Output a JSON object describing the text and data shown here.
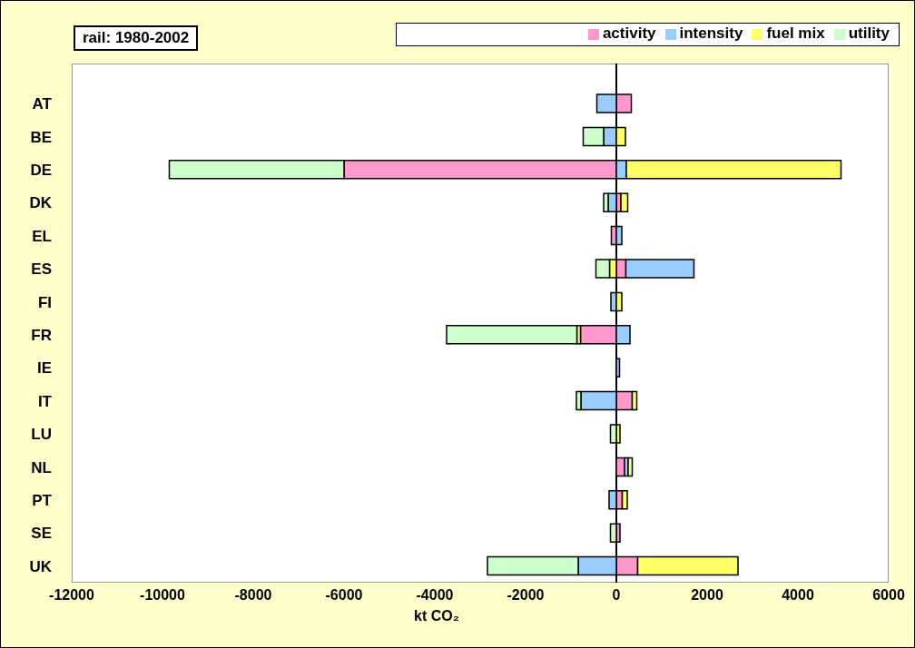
{
  "chart_data": {
    "type": "bar",
    "orientation": "horizontal",
    "stacked": true,
    "annotations": [
      "rail: 1980-2002"
    ],
    "xlabel": "kt CO₂",
    "categories": [
      "AT",
      "BE",
      "DE",
      "DK",
      "EL",
      "ES",
      "FI",
      "FR",
      "IE",
      "IT",
      "LU",
      "NL",
      "PT",
      "SE",
      "UK"
    ],
    "series": [
      {
        "name": "activity",
        "color": "#ff99cc",
        "values": [
          330,
          null,
          -6000,
          100,
          -110,
          210,
          null,
          -790,
          null,
          350,
          null,
          180,
          130,
          80,
          470
        ]
      },
      {
        "name": "intensity",
        "color": "#99ccff",
        "values": [
          -430,
          -280,
          220,
          -180,
          120,
          1500,
          -120,
          300,
          70,
          -780,
          null,
          80,
          -160,
          null,
          -840
        ]
      },
      {
        "name": "fuel mix",
        "color": "#ffff66",
        "values": [
          null,
          200,
          4730,
          150,
          null,
          -150,
          120,
          -80,
          null,
          100,
          80,
          90,
          110,
          null,
          2210
        ]
      },
      {
        "name": "utility",
        "color": "#ccffcc",
        "values": [
          null,
          -450,
          -3850,
          -100,
          null,
          -300,
          null,
          -2870,
          null,
          -100,
          -130,
          null,
          null,
          -130,
          -2000
        ]
      }
    ],
    "xlim": [
      -12000,
      6000
    ],
    "xticks": [
      -12000,
      -10000,
      -8000,
      -6000,
      -4000,
      -2000,
      0,
      2000,
      4000,
      6000
    ],
    "grid": false,
    "legend": "top right"
  }
}
